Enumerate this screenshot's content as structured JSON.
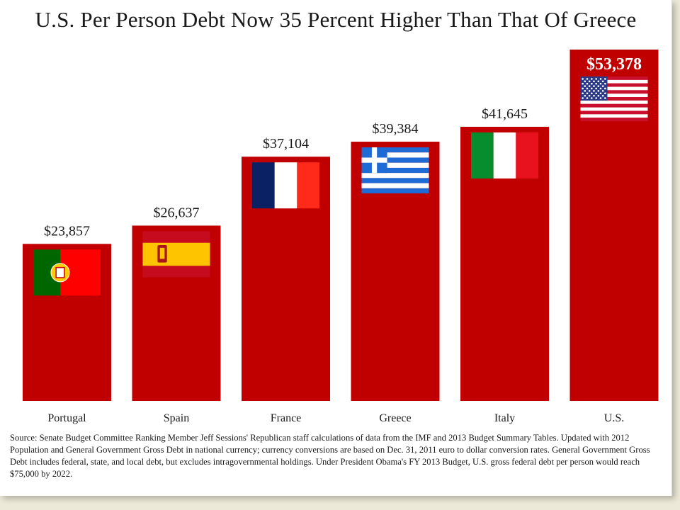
{
  "chart_data": {
    "type": "bar",
    "title": "U.S. Per Person Debt Now 35 Percent Higher Than That Of Greece",
    "categories": [
      "Portugal",
      "Spain",
      "France",
      "Greece",
      "Italy",
      "U.S."
    ],
    "values": [
      23857,
      26637,
      37104,
      39384,
      41645,
      53378
    ],
    "value_labels": [
      "$23,857",
      "$26,637",
      "$37,104",
      "$39,384",
      "$41,645",
      "$53,378"
    ],
    "flags": [
      "portugal-flag",
      "spain-flag",
      "france-flag",
      "greece-flag",
      "italy-flag",
      "us-flag"
    ],
    "highlight": "U.S.",
    "ylim": [
      0,
      53378
    ],
    "grid": false,
    "bar_color": "#c00000"
  },
  "source_note": "Source: Senate Budget Committee Ranking Member Jeff Sessions' Republican staff calculations of data from the IMF and 2013 Budget Summary Tables. Updated with 2012 Population and General Government Gross Debt in national currency; currency conversions are based on Dec. 31, 2011 euro to dollar conversion rates. General Government Gross Debt includes federal, state, and local debt, but excludes intragovernmental holdings. Under President Obama's FY 2013 Budget, U.S. gross federal debt per person would reach $75,000 by 2022."
}
